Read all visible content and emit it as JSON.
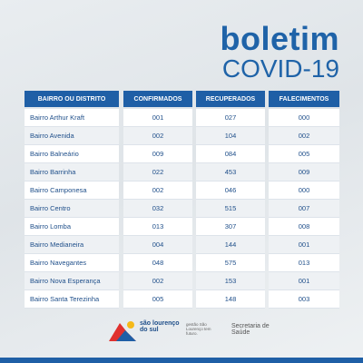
{
  "header": {
    "title": "boletim",
    "subtitle": "COVID-19"
  },
  "table": {
    "columns": [
      "BAIRRO OU DISTRITO",
      "CONFIRMADOS",
      "RECUPERADOS",
      "FALECIMENTOS"
    ],
    "rows": [
      [
        "Bairro Arthur Kraft",
        "001",
        "027",
        "000"
      ],
      [
        "Bairro Avenida",
        "002",
        "104",
        "002"
      ],
      [
        "Bairro Balneário",
        "009",
        "084",
        "005"
      ],
      [
        "Bairro Barrinha",
        "022",
        "453",
        "009"
      ],
      [
        "Bairro Camponesa",
        "002",
        "046",
        "000"
      ],
      [
        "Bairro Centro",
        "032",
        "515",
        "007"
      ],
      [
        "Bairro Lomba",
        "013",
        "307",
        "008"
      ],
      [
        "Bairro Medianeira",
        "004",
        "144",
        "001"
      ],
      [
        "Bairro Navegantes",
        "048",
        "575",
        "013"
      ],
      [
        "Bairro Nova Esperança",
        "002",
        "153",
        "001"
      ],
      [
        "Bairro Santa Terezinha",
        "005",
        "148",
        "003"
      ]
    ]
  },
  "footer": {
    "city": "são lourenço do sul",
    "motto": "gestão São Lourenço tem futuro.",
    "department": "Secretaria de Saúde"
  }
}
